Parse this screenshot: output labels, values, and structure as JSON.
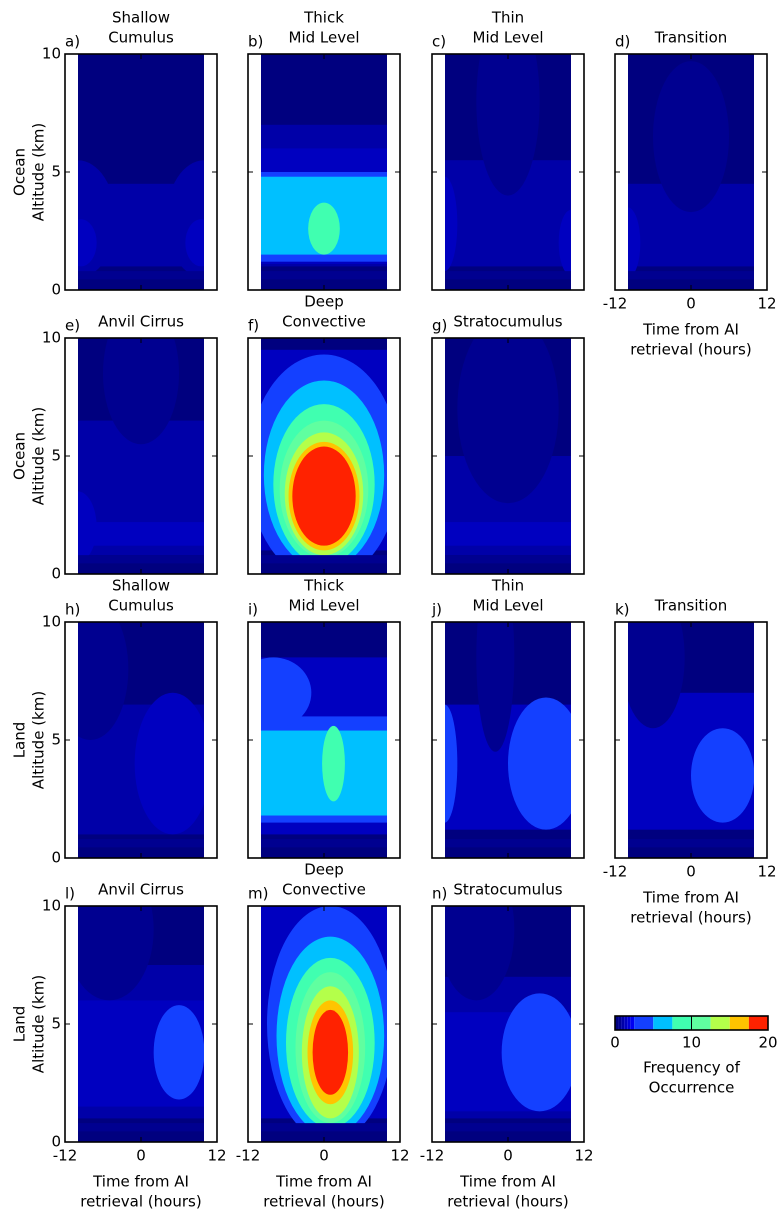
{
  "chart_data": {
    "type": "contour",
    "xlim": [
      -12,
      12
    ],
    "xticks": [
      -12,
      0,
      12
    ],
    "ylim": [
      0,
      10
    ],
    "yticks": [
      0,
      5,
      10
    ],
    "x_label_lines": [
      "Time from AI",
      "retrieval (hours)"
    ],
    "rows": [
      {
        "y_label_lines": [
          "Ocean",
          "Altitude (km)"
        ],
        "panels": [
          {
            "label": "a)",
            "title_lines": [
              "Shallow",
              "Cumulus"
            ]
          },
          {
            "label": "b)",
            "title_lines": [
              "Thick",
              "Mid Level"
            ]
          },
          {
            "label": "c)",
            "title_lines": [
              "Thin",
              "Mid Level"
            ]
          },
          {
            "label": "d)",
            "title_lines": [
              "Transition"
            ]
          }
        ]
      },
      {
        "y_label_lines": [
          "Ocean",
          "Altitude (km)"
        ],
        "panels": [
          {
            "label": "e)",
            "title_lines": [
              "Anvil Cirrus"
            ]
          },
          {
            "label": "f)",
            "title_lines": [
              "Deep",
              "Convective"
            ]
          },
          {
            "label": "g)",
            "title_lines": [
              "Stratocumulus"
            ]
          }
        ]
      },
      {
        "y_label_lines": [
          "Land",
          "Altitude (km)"
        ],
        "panels": [
          {
            "label": "h)",
            "title_lines": [
              "Shallow",
              "Cumulus"
            ]
          },
          {
            "label": "i)",
            "title_lines": [
              "Thick",
              "Mid Level"
            ]
          },
          {
            "label": "j)",
            "title_lines": [
              "Thin",
              "Mid Level"
            ]
          },
          {
            "label": "k)",
            "title_lines": [
              "Transition"
            ]
          }
        ]
      },
      {
        "y_label_lines": [
          "Land",
          "Altitude (km)"
        ],
        "panels": [
          {
            "label": "l)",
            "title_lines": [
              "Anvil Cirrus"
            ]
          },
          {
            "label": "m)",
            "title_lines": [
              "Deep",
              "Convective"
            ]
          },
          {
            "label": "n)",
            "title_lines": [
              "Stratocumulus"
            ]
          }
        ]
      }
    ],
    "colorbar": {
      "lim": [
        0,
        20
      ],
      "ticks": [
        0,
        10,
        20
      ],
      "levels": [
        0,
        0.4,
        0.8,
        1.2,
        1.6,
        2,
        2.5,
        5,
        7.5,
        10,
        12.5,
        15,
        17.5,
        20
      ],
      "colors": [
        "#00007f",
        "#000090",
        "#0000a8",
        "#0000c0",
        "#0000d8",
        "#0000f0",
        "#1440ff",
        "#00c0ff",
        "#40ffb0",
        "#60ffa0",
        "#b4ff4a",
        "#ffc400",
        "#ff2200"
      ],
      "label_lines": [
        "Frequency of",
        "Occurrence"
      ]
    }
  }
}
